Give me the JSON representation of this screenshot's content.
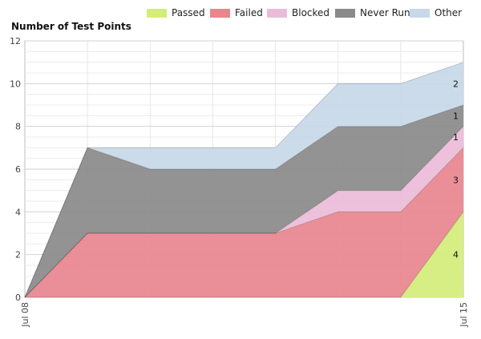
{
  "chart_data": {
    "type": "area",
    "stacked": true,
    "title": "Number of Test Points",
    "x": [
      "Jul 08",
      "",
      "",
      "",
      "",
      "",
      "",
      "Jul 15"
    ],
    "series": [
      {
        "name": "Passed",
        "color": "#d4ed7a",
        "values": [
          0,
          0,
          0,
          0,
          0,
          0,
          0,
          4
        ]
      },
      {
        "name": "Failed",
        "color": "#e8868e",
        "values": [
          0,
          3,
          3,
          3,
          3,
          4,
          4,
          3
        ]
      },
      {
        "name": "Blocked",
        "color": "#ebbcd8",
        "values": [
          0,
          0,
          0,
          0,
          0,
          1,
          1,
          1
        ]
      },
      {
        "name": "Never Run",
        "color": "#8a8a8a",
        "values": [
          0,
          4,
          3,
          3,
          3,
          3,
          3,
          1
        ]
      },
      {
        "name": "Other",
        "color": "#c7d8e8",
        "values": [
          0,
          0,
          1,
          1,
          1,
          2,
          2,
          2
        ]
      }
    ],
    "data_labels": [
      "4",
      "3",
      "1",
      "1",
      "2"
    ],
    "yticks": [
      "0",
      "2",
      "4",
      "6",
      "8",
      "10",
      "12"
    ],
    "ylim": [
      0,
      12
    ],
    "legend_position": "top",
    "grid": true
  }
}
